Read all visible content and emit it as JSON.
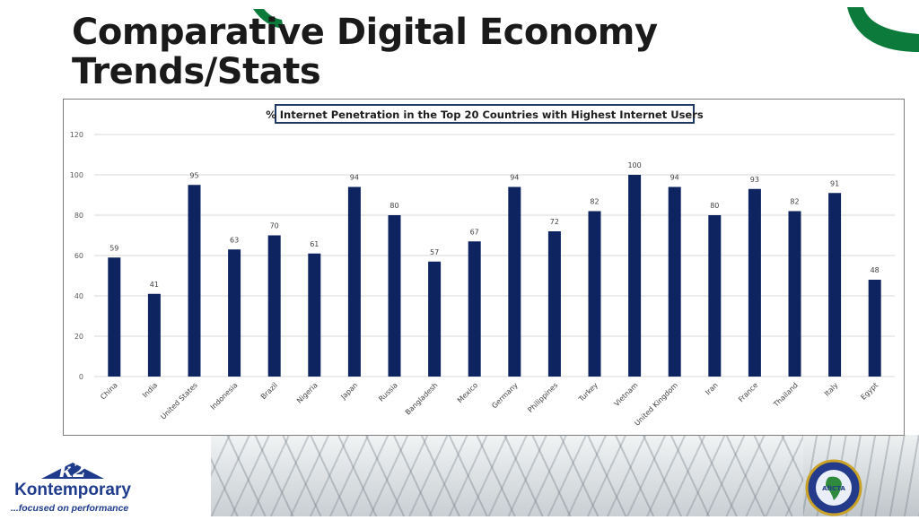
{
  "slide": {
    "title_line1": "Comparative Digital Economy",
    "title_line2": "Trends/Stats"
  },
  "logos": {
    "left_brand": "Kontemporary",
    "left_tagline": "...focused on performance",
    "left_mark": "k2",
    "right_mark": "AfICTA"
  },
  "colors": {
    "bar": "#0d2461",
    "title_box_border": "#203864"
  },
  "chart_data": {
    "type": "bar",
    "title": "% Internet Penetration in the Top 20 Countries with Highest Internet Users",
    "categories": [
      "China",
      "India",
      "United States",
      "Indonesia",
      "Brazil",
      "Nigeria",
      "Japan",
      "Russia",
      "Bangladesh",
      "Mexico",
      "Germany",
      "Philippines",
      "Turkey",
      "Vietnam",
      "United Kingdom",
      "Iran",
      "France",
      "Thailand",
      "Italy",
      "Egypt"
    ],
    "values": [
      59,
      41,
      95,
      63,
      70,
      61,
      94,
      80,
      57,
      67,
      94,
      72,
      82,
      100,
      94,
      80,
      93,
      82,
      91,
      48
    ],
    "ylim": [
      0,
      120
    ],
    "yticks": [
      0,
      20,
      40,
      60,
      80,
      100,
      120
    ],
    "grid": true,
    "legend": "none"
  }
}
